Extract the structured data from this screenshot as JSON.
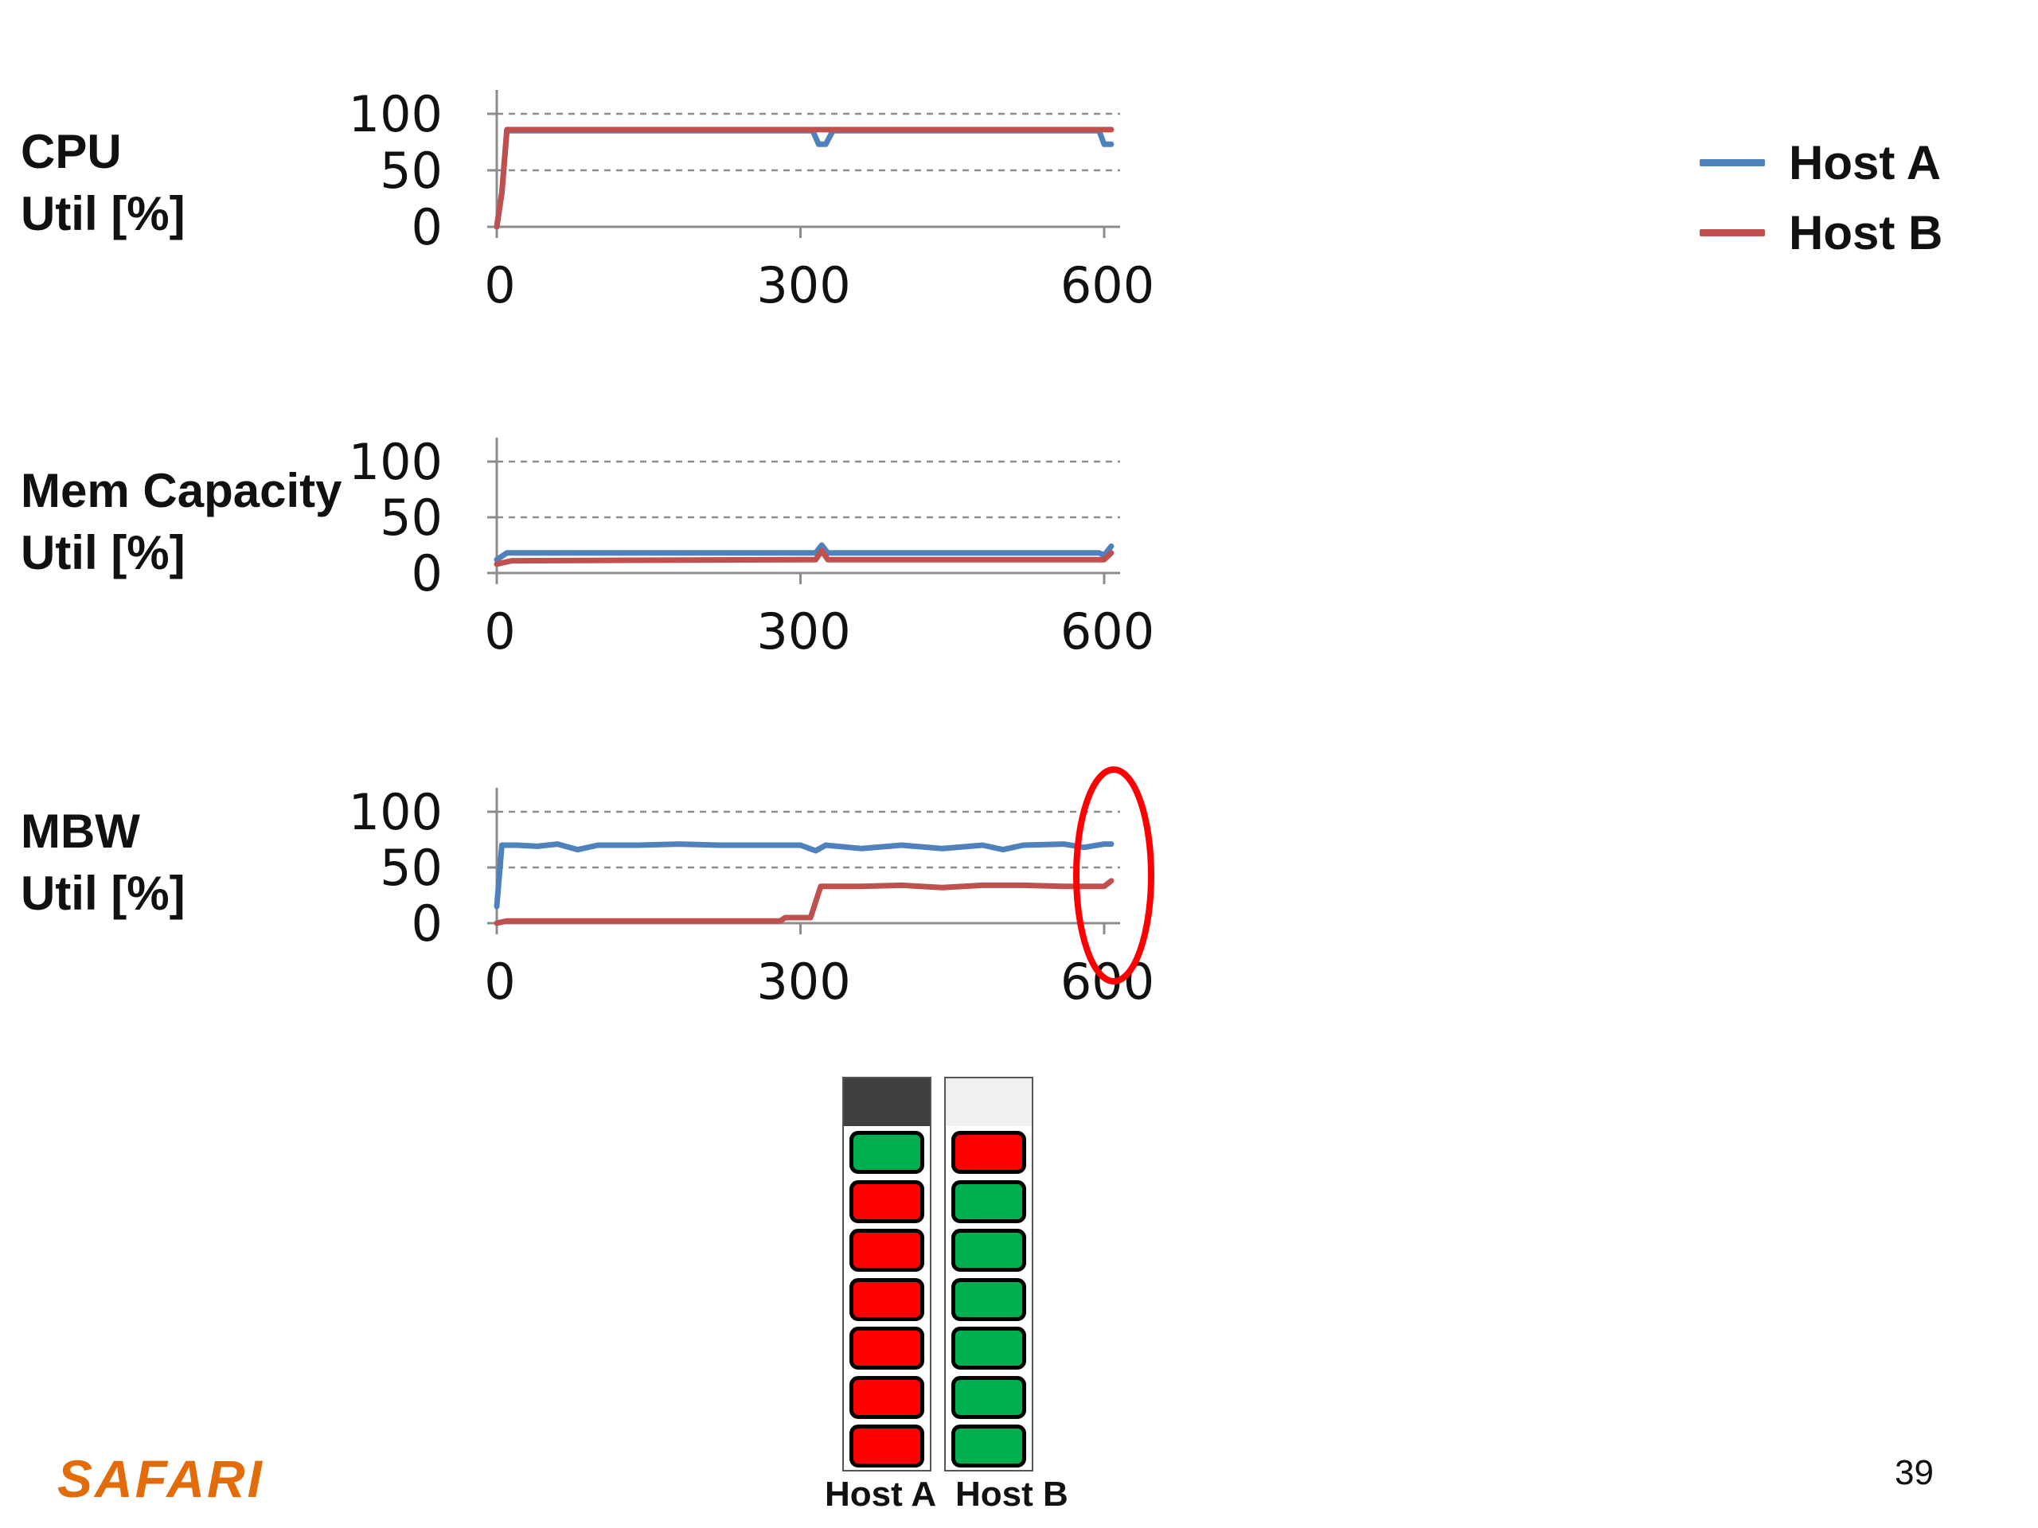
{
  "legend": {
    "items": [
      {
        "label": "Host A",
        "color": "#4f81bd"
      },
      {
        "label": "Host B",
        "color": "#c0504d"
      }
    ]
  },
  "chart_data": [
    {
      "type": "line",
      "row_label": [
        "CPU",
        "Util [%]"
      ],
      "xlim": [
        0,
        600
      ],
      "ylim": [
        0,
        100
      ],
      "x_ticks": [
        "0",
        "300",
        "600"
      ],
      "y_ticks": [
        "100",
        "50",
        "0"
      ],
      "grid": "dashed horizontal at 50 and 100",
      "series": [
        {
          "name": "Host A",
          "color": "#4f81bd",
          "points": [
            [
              0,
              0
            ],
            [
              5,
              30
            ],
            [
              10,
              85
            ],
            [
              300,
              85
            ],
            [
              312,
              85
            ],
            [
              318,
              73
            ],
            [
              325,
              73
            ],
            [
              332,
              85
            ],
            [
              590,
              85
            ],
            [
              595,
              85
            ],
            [
              600,
              73
            ],
            [
              607,
              73
            ]
          ]
        },
        {
          "name": "Host B",
          "color": "#c0504d",
          "points": [
            [
              0,
              0
            ],
            [
              5,
              30
            ],
            [
              10,
              86
            ],
            [
              300,
              86
            ],
            [
              600,
              86
            ],
            [
              607,
              86
            ]
          ]
        }
      ]
    },
    {
      "type": "line",
      "row_label": [
        "Mem Capacity",
        "Util [%]"
      ],
      "xlim": [
        0,
        600
      ],
      "ylim": [
        0,
        100
      ],
      "x_ticks": [
        "0",
        "300",
        "600"
      ],
      "y_ticks": [
        "100",
        "50",
        "0"
      ],
      "grid": "dashed horizontal at 50 and 100",
      "series": [
        {
          "name": "Host A",
          "color": "#4f81bd",
          "points": [
            [
              0,
              12
            ],
            [
              10,
              18
            ],
            [
              300,
              18
            ],
            [
              315,
              18
            ],
            [
              321,
              25
            ],
            [
              327,
              18
            ],
            [
              595,
              18
            ],
            [
              600,
              16
            ],
            [
              607,
              24
            ]
          ]
        },
        {
          "name": "Host B",
          "color": "#c0504d",
          "points": [
            [
              0,
              8
            ],
            [
              15,
              11
            ],
            [
              300,
              12
            ],
            [
              315,
              12
            ],
            [
              321,
              20
            ],
            [
              327,
              12
            ],
            [
              600,
              12
            ],
            [
              607,
              18
            ]
          ]
        }
      ]
    },
    {
      "type": "line",
      "row_label": [
        "MBW",
        "Util [%]"
      ],
      "xlim": [
        0,
        600
      ],
      "ylim": [
        0,
        100
      ],
      "x_ticks": [
        "0",
        "300",
        "600"
      ],
      "y_ticks": [
        "100",
        "50",
        "0"
      ],
      "grid": "dashed horizontal at 50 and 100",
      "annotation": "red ellipse highlighting x≈600",
      "series": [
        {
          "name": "Host A",
          "color": "#4f81bd",
          "points": [
            [
              0,
              15
            ],
            [
              5,
              70
            ],
            [
              20,
              70
            ],
            [
              40,
              69
            ],
            [
              60,
              71
            ],
            [
              80,
              66
            ],
            [
              100,
              70
            ],
            [
              140,
              70
            ],
            [
              180,
              71
            ],
            [
              220,
              70
            ],
            [
              260,
              70
            ],
            [
              300,
              70
            ],
            [
              315,
              65
            ],
            [
              325,
              70
            ],
            [
              360,
              67
            ],
            [
              400,
              70
            ],
            [
              440,
              67
            ],
            [
              480,
              70
            ],
            [
              500,
              66
            ],
            [
              520,
              70
            ],
            [
              560,
              71
            ],
            [
              580,
              68
            ],
            [
              600,
              71
            ],
            [
              607,
              71
            ]
          ]
        },
        {
          "name": "Host B",
          "color": "#c0504d",
          "points": [
            [
              0,
              0
            ],
            [
              10,
              2
            ],
            [
              100,
              2
            ],
            [
              200,
              2
            ],
            [
              280,
              2
            ],
            [
              285,
              5
            ],
            [
              310,
              5
            ],
            [
              320,
              33
            ],
            [
              360,
              33
            ],
            [
              400,
              34
            ],
            [
              440,
              32
            ],
            [
              480,
              34
            ],
            [
              520,
              34
            ],
            [
              560,
              33
            ],
            [
              600,
              33
            ],
            [
              607,
              38
            ]
          ]
        }
      ]
    }
  ],
  "racks": {
    "hosts": [
      {
        "label": "Host A",
        "head_color": "#404040",
        "slots": [
          "#00b050",
          "#ff0000",
          "#ff0000",
          "#ff0000",
          "#ff0000",
          "#ff0000",
          "#ff0000"
        ]
      },
      {
        "label": "Host B",
        "head_color": "#f0f0f0",
        "slots": [
          "#ff0000",
          "#00b050",
          "#00b050",
          "#00b050",
          "#00b050",
          "#00b050",
          "#00b050"
        ]
      }
    ]
  },
  "footer": {
    "brand": "SAFARI",
    "page_number": "39"
  }
}
